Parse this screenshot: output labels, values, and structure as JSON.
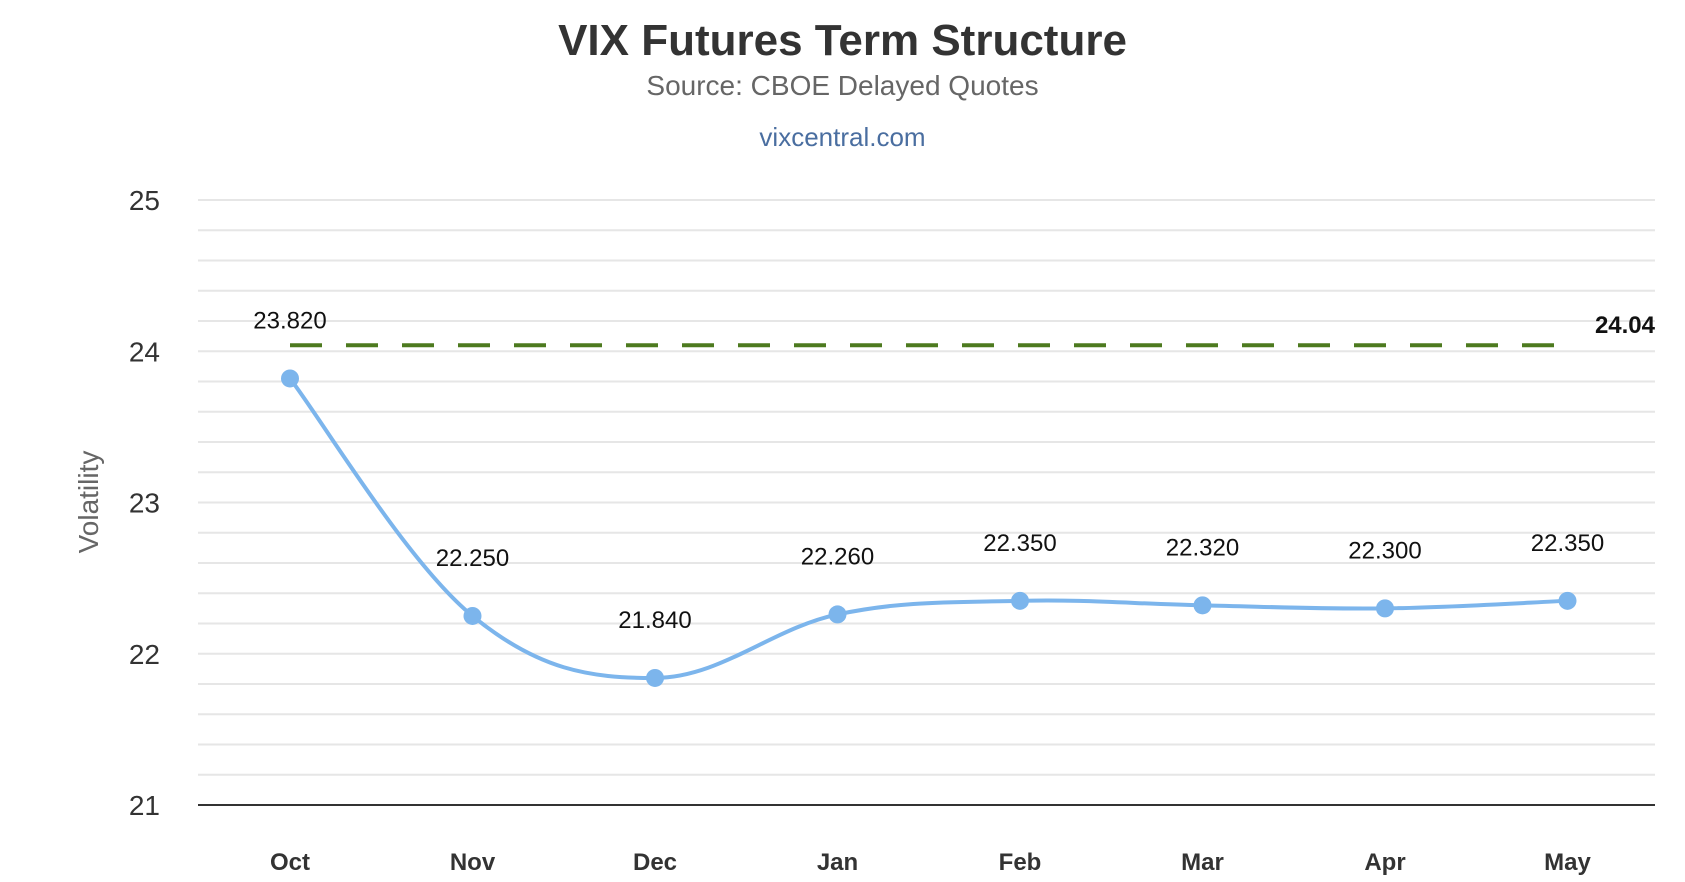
{
  "chart_data": {
    "type": "line",
    "title": "VIX Futures Term Structure",
    "subtitle": "Source: CBOE Delayed Quotes",
    "credit": "vixcentral.com",
    "xlabel": "",
    "ylabel": "Volatility",
    "categories": [
      "Oct",
      "Nov",
      "Dec",
      "Jan",
      "Feb",
      "Mar",
      "Apr",
      "May"
    ],
    "series": [
      {
        "name": "",
        "values": [
          23.82,
          22.25,
          21.84,
          22.26,
          22.35,
          22.32,
          22.3,
          22.35
        ],
        "labels": [
          "23.820",
          "22.250",
          "21.840",
          "22.260",
          "22.350",
          "22.320",
          "22.300",
          "22.350"
        ],
        "color": "#7cb5ec"
      }
    ],
    "reference_line": {
      "value": 24.04,
      "label": "24.04",
      "color": "#4d7a1f",
      "style": "dashed"
    },
    "ylim": [
      21,
      25
    ],
    "yticks": [
      "21",
      "22",
      "23",
      "24",
      "25"
    ],
    "grid": true,
    "grid_color": "#e6e6e6",
    "axis_color": "#333333"
  }
}
